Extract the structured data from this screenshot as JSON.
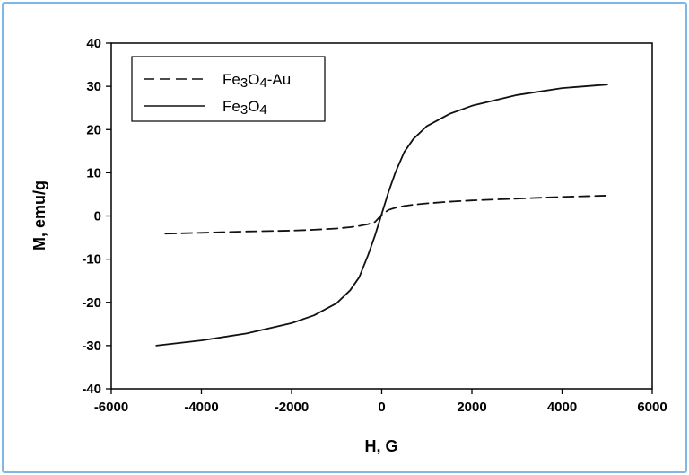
{
  "chart_data": {
    "type": "line",
    "xlabel": "H, G",
    "ylabel": "M, emu/g",
    "xlim": [
      -6000,
      6000
    ],
    "ylim": [
      -40,
      40
    ],
    "xticks": [
      -6000,
      -4000,
      -2000,
      0,
      2000,
      4000,
      6000
    ],
    "yticks": [
      -40,
      -30,
      -20,
      -10,
      0,
      10,
      20,
      30,
      40
    ],
    "grid": false,
    "legend_position": "top-left",
    "series": [
      {
        "name": "Fe3O4-Au",
        "style": "dashed",
        "color": "#111111",
        "x": [
          -4800,
          -4000,
          -3000,
          -2000,
          -1500,
          -1000,
          -700,
          -500,
          -300,
          -150,
          0,
          150,
          300,
          500,
          700,
          1000,
          1500,
          2000,
          3000,
          4000,
          5000
        ],
        "y": [
          -4.1,
          -3.9,
          -3.6,
          -3.4,
          -3.2,
          -2.9,
          -2.6,
          -2.3,
          -1.9,
          -1.4,
          0.3,
          1.4,
          1.9,
          2.3,
          2.6,
          2.9,
          3.3,
          3.6,
          4.0,
          4.4,
          4.7
        ]
      },
      {
        "name": "Fe3O4",
        "style": "solid",
        "color": "#111111",
        "x": [
          -5000,
          -4000,
          -3000,
          -2000,
          -1500,
          -1000,
          -700,
          -500,
          -300,
          -150,
          0,
          150,
          300,
          500,
          700,
          1000,
          1500,
          2000,
          3000,
          4000,
          5000
        ],
        "y": [
          -30.0,
          -28.8,
          -27.2,
          -24.8,
          -23.0,
          -20.2,
          -17.2,
          -14.2,
          -9.0,
          -4.5,
          0.5,
          5.5,
          10.0,
          14.8,
          17.8,
          20.8,
          23.6,
          25.5,
          28.0,
          29.6,
          30.4
        ]
      }
    ]
  }
}
